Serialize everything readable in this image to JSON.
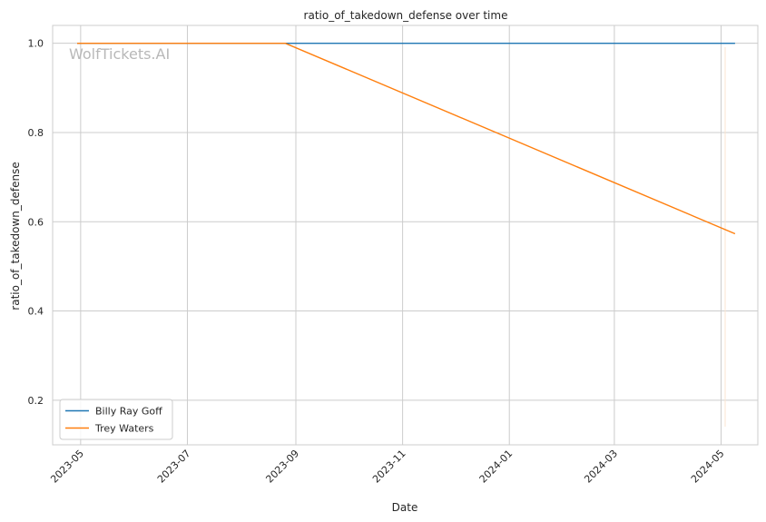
{
  "chart_data": {
    "type": "line",
    "title": "ratio_of_takedown_defense over time",
    "xlabel": "Date",
    "ylabel": "ratio_of_takedown_defense",
    "watermark": "WolfTickets.AI",
    "x_ticks": [
      "2023-05",
      "2023-07",
      "2023-09",
      "2023-11",
      "2024-01",
      "2024-03",
      "2024-05"
    ],
    "y_ticks": [
      0.2,
      0.4,
      0.6,
      0.8,
      1.0
    ],
    "y_tick_labels": [
      "0.2",
      "0.4",
      "0.6",
      "0.8",
      "1.0"
    ],
    "xlim": [
      "2023-04-15",
      "2024-05-22"
    ],
    "ylim": [
      0.1,
      1.04
    ],
    "grid": true,
    "legend_position": "lower-left",
    "series": [
      {
        "name": "Billy Ray Goff",
        "color": "#1f77b4",
        "points": [
          {
            "x": "2023-04-29",
            "y": 1.0
          },
          {
            "x": "2023-08-26",
            "y": 1.0
          },
          {
            "x": "2024-05-09",
            "y": 1.0
          }
        ]
      },
      {
        "name": "Trey Waters",
        "color": "#ff7f0e",
        "points": [
          {
            "x": "2023-04-29",
            "y": 1.0
          },
          {
            "x": "2023-08-26",
            "y": 1.0
          },
          {
            "x": "2024-05-09",
            "y": 0.573
          }
        ]
      }
    ]
  }
}
